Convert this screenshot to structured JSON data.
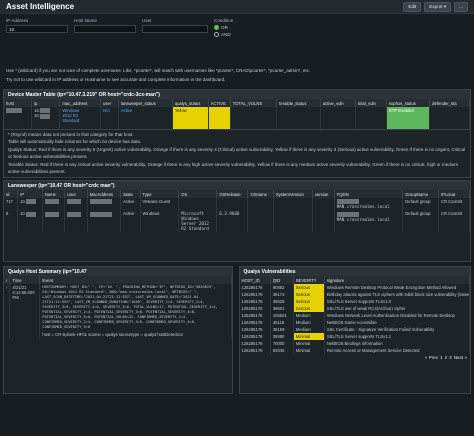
{
  "header": {
    "title": "Asset Intelligence",
    "edit": "Edit",
    "export": "Export ▾",
    "more": "..."
  },
  "filters": {
    "ip_label": "IP Address",
    "ip_value": "10.",
    "host_label": "Host Name",
    "host_value": "",
    "user_label": "User",
    "user_value": "",
    "cond_label": "Condition",
    "or": "OR",
    "and": "AND"
  },
  "notes": [
    "Use * (wildcard) if you are not sure of complete username. Like, *pcarter*, will match with usernames like *pcarter*, CRAD\\pcarter*, *pcarter_admin*, etc.",
    "Try not to use wildcard in IP address or Hostname to see accurate and complete information in the dashboard."
  ],
  "device": {
    "title": "Device Master Table (ip=\"10.47.3.219\" OR host=\"crdc-3cx-man\")",
    "cols": [
      "host",
      "ip",
      "mac_address",
      "user",
      "lansweeper_status",
      "qualys_status",
      "ACTIVE",
      "TOTAL_VULNS",
      "tenable_status",
      "active_vuln",
      "total_vuln",
      "sophos_status",
      "defender_sta"
    ],
    "row": {
      "host_link": "",
      "ip": "10.",
      "ip2": "10.",
      "os": [
        "Windows",
        "2012 R2",
        "Standard"
      ],
      "user": "N/A",
      "lan": "Active",
      "qualys": "Yellow",
      "active": "",
      "sophos": "RTP Enabled"
    }
  },
  "device_notes": [
    "* (Rsynd) means data not present in that category for that host.",
    "Table will automatically hide columns for which no device has data.",
    "Qualys Status: Red if there is any severity 5 (Urgent) active vulnerability, Orange if there is any severity 4 (Critical) active vulnerability, Yellow if there is any severity 3 (Serious) active vulnerability, Green if there is no Urgent, Critical or Serious active vulnerabilities present.",
    "Tenable Status: Red if there is any critical active severity vulnerability, Orange if there is any high active severity vulnerability, Yellow if there is any medium active severity vulnerability, Green if there is no critical, high or medium active vulnerabilities present."
  ],
  "lansweeper": {
    "title": "Lansweeper (ip=\"10.47 OR host=\"crdc   man\")",
    "cols": [
      "Id",
      "IP",
      "Name",
      "User",
      "MacAddress",
      "State",
      "Type",
      "OS",
      "OSRelease",
      "OSname",
      "SystemVersion",
      "version",
      "FQDN",
      "GroupName",
      "IPLocat"
    ],
    "rows": [
      {
        "id": "717",
        "ip": "10.",
        "name": "",
        "user": "",
        "mac": "",
        "state": "Active",
        "type": "VMware Guest",
        "os": "",
        "osrel": "",
        "osname": "",
        "sysver": "",
        "version": "",
        "fqdn": "MAN.crossrealms.local",
        "group": "Default group",
        "iploc": "CR CoreSit"
      },
      {
        "id": "8",
        "ip": "10.",
        "name": "",
        "user": "",
        "mac": "",
        "state": "Active",
        "type": "Windows",
        "os": "Microsoft Windows Server 2012 R2 Standard",
        "osrel": "6.3.9600",
        "osname": "",
        "sysver": "",
        "version": "",
        "fqdn": "MAN.crossrealms.local",
        "group": "Default group",
        "iploc": "CR CoreSit"
      }
    ]
  },
  "qualys_summary": {
    "title": "Qualys Host Summary (ip=\"10.47",
    "cols": [
      "i",
      "Time",
      "Event"
    ],
    "time": "4/21/21 4:12:55.000 PM",
    "event": "HOSTSUMMARY: HOST_ID=\"  \", IP=\"10.  \", TRACKING_METHOD=\"IP\", NETBIOS_ID=\"30A3825\", OS=\"Windows 2012 R2 Standard\", DNS=\"man.crossrealms.local\", NETBIOS=\" \", LAST_SCAN_DATETIME=\"2021-04-21T21:12:55Z\", LAST_VM_SCANNED_DATE=\"2021-04-21T21:12:55Z\", LAST_VM_SCANNED_DURATION=\"1040\", SEVERITY_1=4, SEVERITY_2=4, SEVERITY_3=9, SEVERITY_4=0, SEVERITY_5=0, TOTAL_VULNS=17, POTENTIAL_SEVERITY_1=4, POTENTIAL_SEVERITY_2=4, POTENTIAL_SEVERITY_3=6, POTENTIAL_SEVERITY_4=8, POTENTIAL_SEVERITY_5=0, POTENTIAL_VULNS=22, CONFIRMED_SEVERITY_1=4, CONFIRMED_SEVERITY_2=4, CONFIRMED_SEVERITY_3=9, CONFIRMED_SEVERITY_4=0, CONFIRMED_SEVERITY_5=0",
    "footer": [
      "host =",
      "CR-Splunk-HF01",
      "source =",
      "qualys",
      "sourcetype =",
      "qualys:hostDetection"
    ]
  },
  "qualys_vulns": {
    "title": "Qualys Vulnerabilities",
    "cols": [
      "HOST_ID",
      "QID",
      "SEVERITY",
      "signature"
    ],
    "rows": [
      {
        "host": "126285176",
        "qid": "90882",
        "sev": "Serious",
        "cls": "sev-y",
        "sig": "Windows Remote Desktop Protocol Weak Encryption Method Allowed"
      },
      {
        "host": "126285176",
        "qid": "38173",
        "sev": "Serious",
        "cls": "sev-y",
        "sig": "Birthday attacks against TLS ciphers with 64bit block size vulnerability (Sweet32)"
      },
      {
        "host": "126285176",
        "qid": "38628",
        "sev": "Serious",
        "cls": "sev-y",
        "sig": "SSL/TLS Server supports TLSv1.0"
      },
      {
        "host": "126285176",
        "qid": "38601",
        "sev": "Serious",
        "cls": "sev-y",
        "sig": "SSL/TLS use of weak RC4(Arcfour) cipher"
      },
      {
        "host": "126285176",
        "qid": "105501",
        "sev": "Medium",
        "cls": "",
        "sig": "Windows Network Level Authentication Disabled for Remote Desktop"
      },
      {
        "host": "126285176",
        "qid": "45118",
        "sev": "Medium",
        "cls": "",
        "sig": "NetBIOS Name Accessible"
      },
      {
        "host": "126285176",
        "qid": "38169",
        "sev": "Medium",
        "cls": "",
        "sig": "SSL Certificate - Signature Verification Failed Vulnerability"
      },
      {
        "host": "126285176",
        "qid": "38580",
        "sev": "Minimal",
        "cls": "sev-y",
        "sig": "SSL/TLS Server supports TLSv1.1"
      },
      {
        "host": "126285176",
        "qid": "70000",
        "sev": "Minimal",
        "cls": "",
        "sig": "NetBIOS Bindings Information"
      },
      {
        "host": "126285176",
        "qid": "82045",
        "sev": "Minimal",
        "cls": "",
        "sig": "Remote Access or Management Service Detected"
      }
    ],
    "paging": [
      "« Prev",
      "1",
      "2",
      "3",
      "Next »"
    ]
  }
}
